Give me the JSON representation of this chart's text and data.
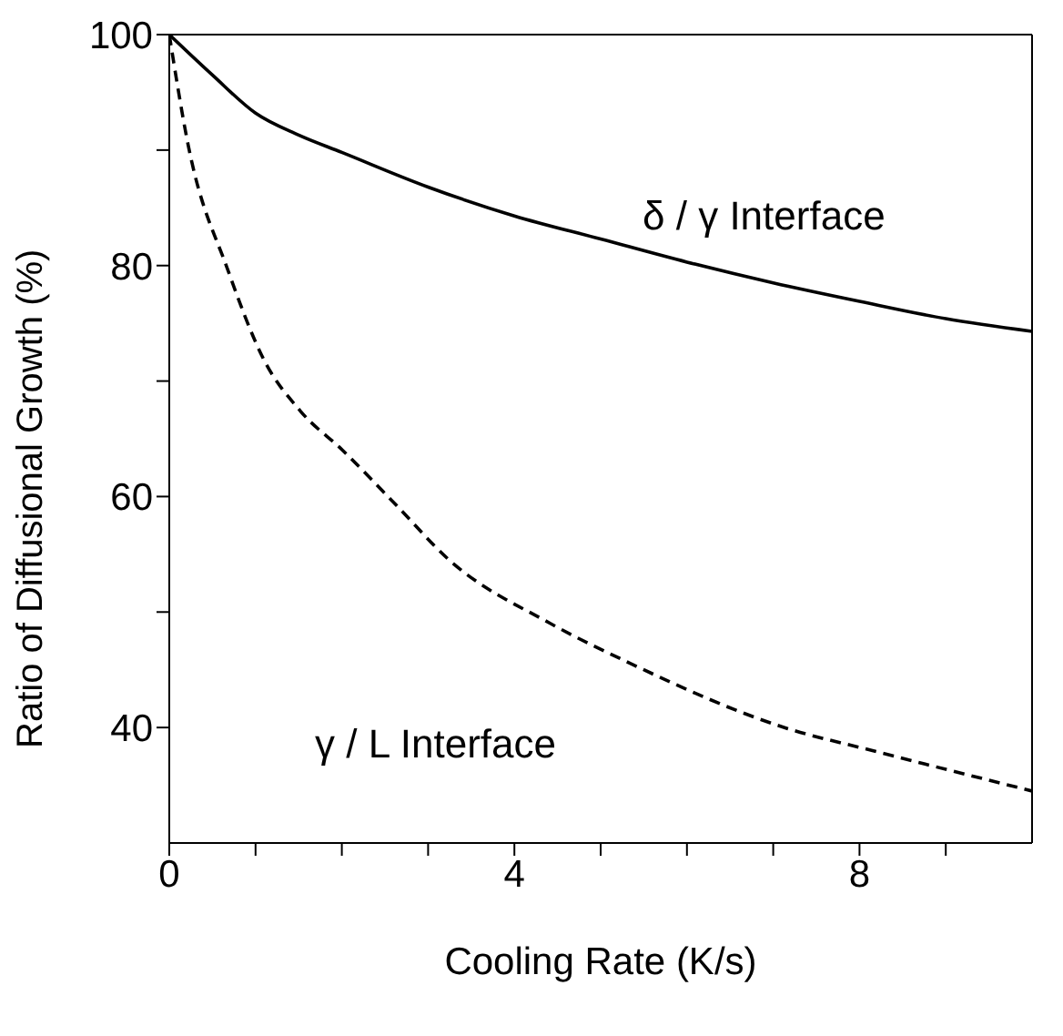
{
  "chart_data": {
    "type": "line",
    "xlabel": "Cooling Rate  (K/s)",
    "ylabel": "Ratio of Diffusional Growth  (%)",
    "xlim": [
      0,
      10
    ],
    "ylim": [
      30,
      100
    ],
    "xticks": [
      0,
      {
        "value": 1,
        "label": null
      },
      {
        "value": 2,
        "label": null
      },
      {
        "value": 3,
        "label": null
      },
      4,
      {
        "value": 5,
        "label": null
      },
      {
        "value": 6,
        "label": null
      },
      {
        "value": 7,
        "label": null
      },
      8,
      {
        "value": 9,
        "label": null
      }
    ],
    "yticks": [
      40,
      {
        "value": 50,
        "label": null
      },
      60,
      {
        "value": 70,
        "label": null
      },
      80,
      {
        "value": 90,
        "label": null
      },
      100
    ],
    "marker": "none",
    "series": [
      {
        "color": "#000000",
        "line_style": "solid",
        "x": [
          0,
          0.5,
          1,
          1.5,
          2,
          3,
          4,
          5,
          6,
          7,
          8,
          9,
          10
        ],
        "values": [
          100,
          96.5,
          93.2,
          91.3,
          89.8,
          86.8,
          84.3,
          82.3,
          80.3,
          78.5,
          76.9,
          75.4,
          74.3
        ]
      },
      {
        "color": "#000000",
        "line_style": "dashed",
        "x": [
          0,
          0.22,
          0.68,
          1.1,
          1.52,
          2.01,
          2.65,
          3.23,
          4.42,
          5.33,
          7.17,
          8.15,
          10
        ],
        "values": [
          100,
          90.4,
          79.6,
          71.8,
          67.4,
          64,
          59.1,
          54.6,
          49,
          45.6,
          39.9,
          38,
          34.5
        ]
      }
    ],
    "annotations": [
      "δ / γ Interface",
      "γ / L Interface"
    ]
  }
}
